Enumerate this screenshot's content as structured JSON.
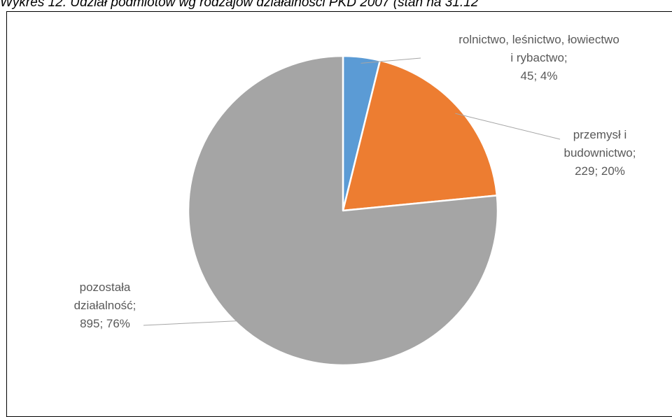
{
  "page_title": "Wykres 12. Udział podmiotów wg rodzajów działalności PKD 2007 (stan na 31.12",
  "chart_data": {
    "type": "pie",
    "title": "",
    "start_angle_deg": 0,
    "slices": [
      {
        "label_lines": [
          "rolnictwo, leśnictwo, łowiectwo",
          "i rybactwo;",
          "45; 4%"
        ],
        "value": 45,
        "percent": 4,
        "color": "#5b9bd5"
      },
      {
        "label_lines": [
          "przemysł i",
          "budownictwo;",
          "229; 20%"
        ],
        "value": 229,
        "percent": 20,
        "color": "#ed7d31"
      },
      {
        "label_lines": [
          "pozostała",
          "działalność;",
          "895; 76%"
        ],
        "value": 895,
        "percent": 76,
        "color": "#a5a5a5"
      }
    ]
  }
}
